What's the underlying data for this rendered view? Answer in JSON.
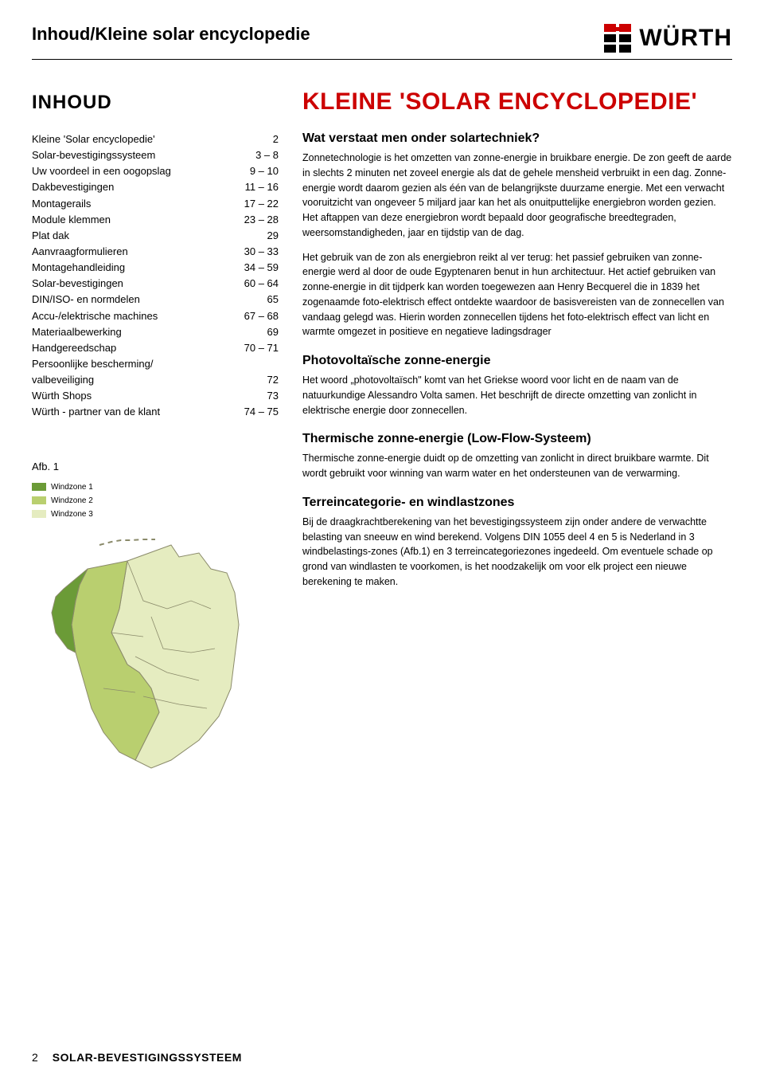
{
  "header": {
    "title": "Inhoud/Kleine solar encyclopedie",
    "logo_text": "WÜRTH",
    "logo_red": "#cc0000",
    "logo_black": "#000000"
  },
  "toc": {
    "heading": "INHOUD",
    "items": [
      {
        "label": "Kleine 'Solar encyclopedie'",
        "page": "2"
      },
      {
        "label": "Solar-bevestigingssysteem",
        "page": "3 – 8"
      },
      {
        "label": "Uw voordeel in een oogopslag",
        "page": "9 – 10"
      },
      {
        "label": "Dakbevestigingen",
        "page": "11 – 16"
      },
      {
        "label": "Montagerails",
        "page": "17 – 22"
      },
      {
        "label": "Module klemmen",
        "page": "23 – 28"
      },
      {
        "label": "Plat dak",
        "page": "29"
      },
      {
        "label": "Aanvraagformulieren",
        "page": "30 – 33"
      },
      {
        "label": "Montagehandleiding",
        "page": "34 – 59"
      },
      {
        "label": "Solar-bevestigingen",
        "page": "60 – 64"
      },
      {
        "label": "DIN/ISO- en normdelen",
        "page": "65"
      },
      {
        "label": "Accu-/elektrische machines",
        "page": "67 – 68"
      },
      {
        "label": "Materiaalbewerking",
        "page": "69"
      },
      {
        "label": "Handgereedschap",
        "page": "70 – 71"
      },
      {
        "label": "Persoonlijke bescherming/",
        "page": ""
      },
      {
        "label": "valbeveiliging",
        "page": "72"
      },
      {
        "label": "Würth Shops",
        "page": "73"
      },
      {
        "label": "Würth - partner van de klant",
        "page": "74 – 75"
      }
    ]
  },
  "figure": {
    "label": "Afb. 1",
    "legend": [
      {
        "label": "Windzone 1",
        "color": "#6b9b37"
      },
      {
        "label": "Windzone 2",
        "color": "#b9cf6f"
      },
      {
        "label": "Windzone 3",
        "color": "#e5ecc0"
      }
    ],
    "map": {
      "stroke": "#8a8a6a",
      "zone1_fill": "#6b9b37",
      "zone2_fill": "#b9cf6f",
      "zone3_fill": "#e5ecc0"
    }
  },
  "main": {
    "title": "KLEINE 'SOLAR ENCYCLOPEDIE'",
    "accent_color": "#cc0000",
    "sections": [
      {
        "heading": "Wat verstaat men onder solartechniek?",
        "paragraphs": [
          "Zonnetechnologie is het omzetten van zonne-energie in bruikbare energie. De zon geeft de aarde in slechts 2 minuten net zoveel energie als dat de gehele mensheid verbruikt in een dag. Zonne-energie wordt daarom gezien als één van de belangrijkste duurzame energie. Met een verwacht vooruitzicht van ongeveer 5 miljard jaar kan het als onuitputtelijke energiebron worden gezien. Het aftappen van deze energiebron wordt bepaald door geografische breedtegraden, weersomstandigheden, jaar en tijdstip van de dag.",
          "Het gebruik van de zon als energiebron reikt al ver terug: het passief gebruiken van zonne-energie werd al door de oude Egyptenaren benut in hun architectuur. Het actief gebruiken van zonne-energie in dit tijdperk kan worden toegewezen aan Henry Becquerel die in 1839 het zogenaamde foto-elektrisch effect ontdekte waardoor de basisvereisten van de zonnecellen van vandaag gelegd was. Hierin worden zonnecellen tijdens het foto-elektrisch effect van licht en warmte omgezet in positieve en negatieve ladingsdrager"
        ]
      },
      {
        "heading": "Photovoltaïsche zonne-energie",
        "paragraphs": [
          "Het woord „photovoltaïsch\" komt van het Griekse woord voor licht en de naam van de natuurkundige Alessandro Volta samen. Het beschrijft de directe omzetting van zonlicht in elektrische energie door zonnecellen."
        ]
      },
      {
        "heading": "Thermische zonne-energie (Low-Flow-Systeem)",
        "paragraphs": [
          "Thermische zonne-energie duidt op de omzetting van zonlicht in direct bruikbare warmte. Dit wordt gebruikt voor winning van warm water en het ondersteunen van de verwarming."
        ]
      },
      {
        "heading": "Terreincategorie- en windlastzones",
        "paragraphs": [
          "Bij de draagkrachtberekening van het bevestigingssysteem zijn onder andere de verwachtte belasting van sneeuw en wind berekend. Volgens DIN 1055 deel 4 en 5 is Nederland in 3 windbelastings-zones (Afb.1) en 3 terreincategoriezones ingedeeld. Om eventuele schade op grond van windlasten te voorkomen, is het noodzakelijk om voor elk project een nieuwe berekening te maken."
        ]
      }
    ]
  },
  "footer": {
    "page_number": "2",
    "label": "SOLAR-BEVESTIGINGSSYSTEEM"
  }
}
